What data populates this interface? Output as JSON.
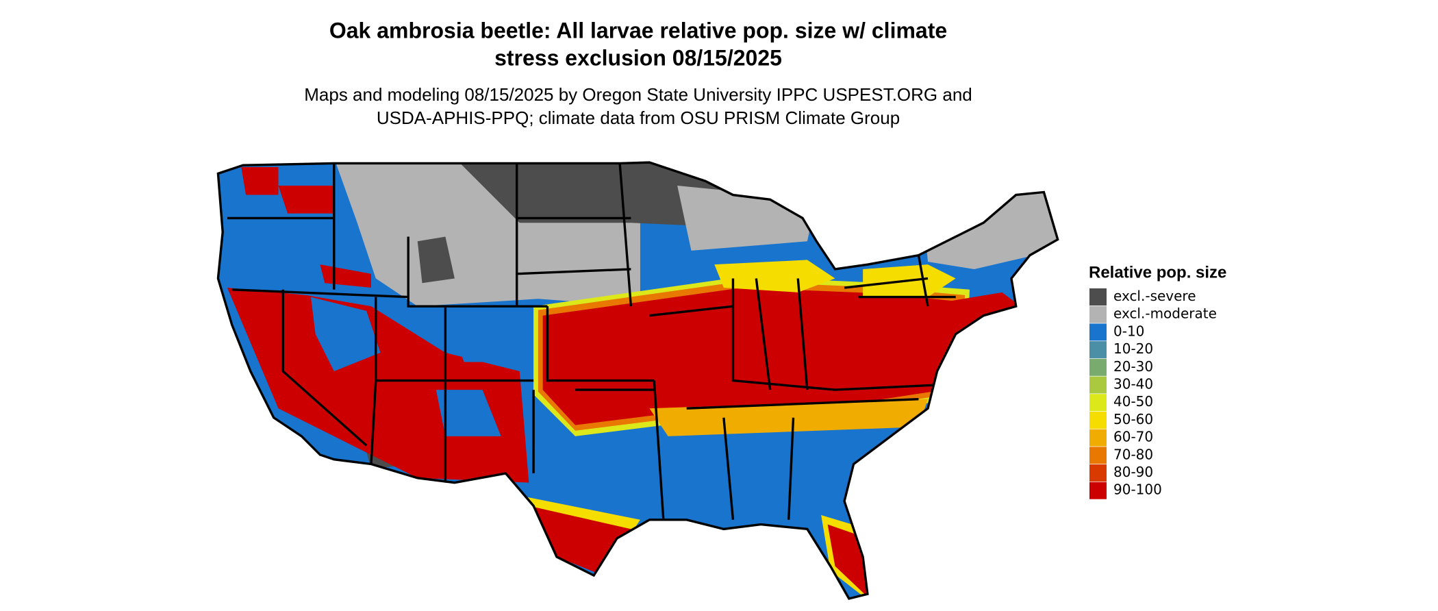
{
  "title": [
    "Oak ambrosia beetle: All larvae relative pop. size w/ climate",
    "stress exclusion 08/15/2025"
  ],
  "subtitle": [
    "Maps and modeling 08/15/2025 by Oregon State University IPPC USPEST.ORG and",
    "USDA-APHIS-PPQ; climate data from OSU PRISM Climate Group"
  ],
  "legend": {
    "title": "Relative pop. size",
    "items": [
      {
        "label": "excl.-severe",
        "color": "#4d4d4d"
      },
      {
        "label": "excl.-moderate",
        "color": "#b3b3b3"
      },
      {
        "label": "0-10",
        "color": "#1874cd"
      },
      {
        "label": "10-20",
        "color": "#4a8fa6"
      },
      {
        "label": "20-30",
        "color": "#7aab6e"
      },
      {
        "label": "30-40",
        "color": "#abc93f"
      },
      {
        "label": "40-50",
        "color": "#dce81a"
      },
      {
        "label": "50-60",
        "color": "#f5dd00"
      },
      {
        "label": "60-70",
        "color": "#f0ad00"
      },
      {
        "label": "70-80",
        "color": "#e87800"
      },
      {
        "label": "80-90",
        "color": "#d83a00"
      },
      {
        "label": "90-100",
        "color": "#cc0000"
      }
    ]
  }
}
